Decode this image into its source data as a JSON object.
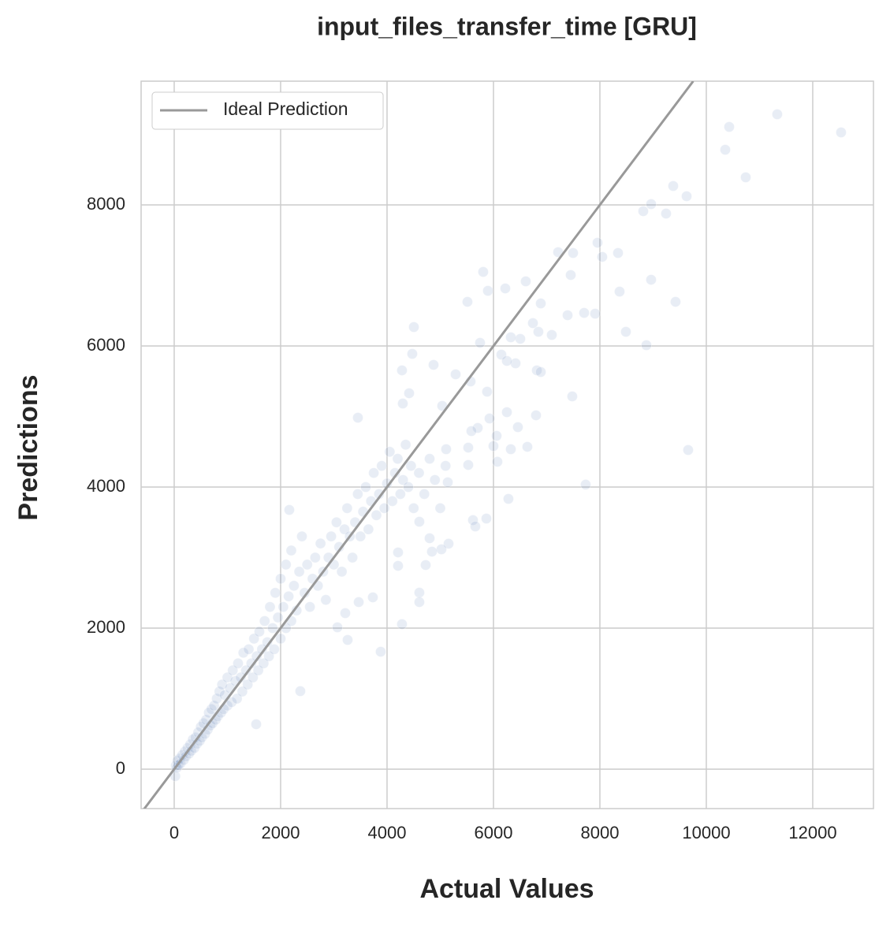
{
  "chart_data": {
    "type": "scatter",
    "title": "input_files_transfer_time [GRU]",
    "x_label": "Actual Values",
    "y_label": "Predictions",
    "xlim": [
      -622,
      13141
    ],
    "ylim": [
      -559,
      9754
    ],
    "xticks": [
      0,
      2000,
      4000,
      6000,
      8000,
      10000,
      12000
    ],
    "yticks": [
      0,
      2000,
      4000,
      6000,
      8000
    ],
    "grid": true,
    "legend": "upper left",
    "point_color": "#4c72b0",
    "ideal_line": {
      "name": "Ideal Prediction",
      "color": "#999999",
      "x": [
        -622,
        9754
      ],
      "y": [
        -622,
        9754
      ]
    },
    "x": [
      12533,
      11333,
      10430,
      10356,
      10741,
      9378,
      9630,
      8963,
      8815,
      9244,
      8341,
      8044,
      7956,
      7496,
      7215,
      5807,
      6607,
      7452,
      8963,
      5896,
      6222,
      5511,
      6889,
      9422,
      8370,
      7704,
      7911,
      7393,
      6741,
      4504,
      8489,
      7096,
      6844,
      6504,
      6326,
      8874,
      5748,
      4474,
      6148,
      6415,
      6252,
      4874,
      6815,
      6889,
      4281,
      5289,
      5570,
      5881,
      4415,
      4296,
      5037,
      7481,
      6252,
      6800,
      5926,
      3452,
      5704,
      6059,
      6459,
      5585,
      6000,
      5111,
      5526,
      6326,
      6637,
      9659,
      6074,
      5526,
      5141,
      7733,
      6281,
      5615,
      5867,
      5659,
      5156,
      4800,
      5022,
      4844,
      4726,
      4607,
      4207,
      4207,
      4607,
      4607,
      4281,
      3881,
      3259,
      3733,
      3467,
      3215,
      3067,
      2163,
      2370,
      1541,
      20,
      30,
      50,
      60,
      80,
      100,
      120,
      150,
      180,
      200,
      220,
      250,
      280,
      300,
      320,
      350,
      380,
      400,
      430,
      450,
      480,
      500,
      520,
      550,
      580,
      600,
      630,
      650,
      680,
      700,
      720,
      750,
      780,
      800,
      820,
      850,
      880,
      900,
      930,
      950,
      1000,
      1000,
      1050,
      1080,
      1100,
      1150,
      1180,
      1200,
      1250,
      1280,
      1300,
      1350,
      1380,
      1400,
      1450,
      1480,
      1500,
      1550,
      1580,
      1600,
      1650,
      1680,
      1700,
      1750,
      1780,
      1800,
      1850,
      1880,
      1900,
      1950,
      2000,
      2000,
      2050,
      2100,
      2100,
      2150,
      2200,
      2200,
      2250,
      2300,
      2350,
      2400,
      2450,
      2500,
      2550,
      2600,
      2650,
      2700,
      2750,
      2800,
      2850,
      2900,
      2950,
      3000,
      3050,
      3100,
      3150,
      3200,
      3250,
      3300,
      3350,
      3400,
      3450,
      3500,
      3550,
      3600,
      3650,
      3700,
      3750,
      3800,
      3850,
      3900,
      3950,
      4000,
      4050,
      4100,
      4150,
      4200,
      4250,
      4300,
      4350,
      4400,
      4450,
      4500,
      4600,
      4700,
      4800,
      4900,
      5000,
      5100
    ],
    "y": [
      9028,
      9285,
      9106,
      8782,
      8391,
      8268,
      8123,
      8011,
      7911,
      7877,
      7318,
      7263,
      7464,
      7318,
      7330,
      7050,
      6916,
      7006,
      6939,
      6782,
      6816,
      6626,
      6603,
      6626,
      6771,
      6469,
      6458,
      6436,
      6324,
      6268,
      6201,
      6156,
      6201,
      6101,
      6123,
      6011,
      6045,
      5888,
      5877,
      5754,
      5788,
      5732,
      5654,
      5631,
      5654,
      5598,
      5497,
      5352,
      5330,
      5184,
      5151,
      5285,
      5061,
      5017,
      4972,
      4983,
      4838,
      4726,
      4849,
      4793,
      4581,
      4536,
      4559,
      4536,
      4570,
      4525,
      4358,
      4313,
      4067,
      4034,
      3832,
      3531,
      3553,
      3441,
      3196,
      3274,
      3117,
      3084,
      2894,
      3508,
      3073,
      2883,
      2503,
      2369,
      2056,
      1665,
      1832,
      2436,
      2369,
      2212,
      2011,
      3676,
      1106,
      637,
      -100,
      50,
      20,
      120,
      60,
      150,
      80,
      200,
      130,
      250,
      180,
      300,
      220,
      350,
      260,
      420,
      300,
      450,
      360,
      520,
      400,
      600,
      450,
      650,
      500,
      700,
      560,
      800,
      620,
      850,
      650,
      900,
      700,
      1000,
      750,
      1100,
      800,
      1200,
      850,
      1050,
      1300,
      900,
      1150,
      950,
      1400,
      1250,
      1000,
      1500,
      1300,
      1100,
      1650,
      1400,
      1200,
      1700,
      1500,
      1300,
      1850,
      1600,
      1400,
      1950,
      1700,
      1500,
      2100,
      1800,
      1600,
      2300,
      2000,
      1700,
      2500,
      2150,
      1850,
      2700,
      2300,
      2000,
      2900,
      2450,
      2100,
      3100,
      2600,
      2250,
      2800,
      3300,
      2500,
      2900,
      2300,
      2700,
      3000,
      2600,
      3200,
      2800,
      2400,
      3000,
      3300,
      2900,
      3500,
      3150,
      2800,
      3400,
      3700,
      3300,
      3000,
      3500,
      3900,
      3300,
      3650,
      4000,
      3400,
      3800,
      4200,
      3600,
      3900,
      4300,
      3700,
      4050,
      4500,
      3800,
      4200,
      4400,
      3900,
      4100,
      4600,
      4000,
      4300,
      3700,
      4200,
      3900,
      4400,
      4100,
      3700,
      4300
    ]
  }
}
